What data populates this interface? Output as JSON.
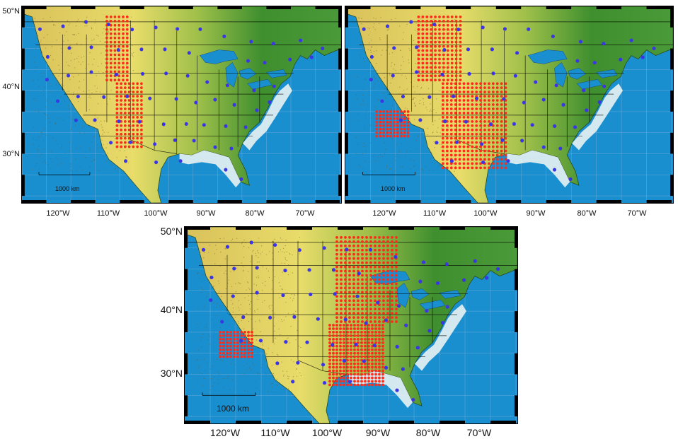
{
  "colors": {
    "ocean": "#1a8fd0",
    "lowland_green": "#3f8f2f",
    "plains_yellow": "#e8dc6a",
    "desert_tan": "#d9c15a",
    "coastal_white": "#e8f3f2",
    "station_blue": "#3b35e6",
    "grid_red": "#ff2a1a",
    "border_black": "#000000",
    "graticule": "#8fb4d6"
  },
  "axes": {
    "lat_labels": [
      "50°N",
      "40°N",
      "30°N"
    ],
    "lon_labels": [
      "120°W",
      "110°W",
      "100°W",
      "90°W",
      "80°W",
      "70°W"
    ]
  },
  "panels": [
    {
      "id": "top-left",
      "scale_label": "1000 km"
    },
    {
      "id": "top-right",
      "scale_label": "1000 km"
    },
    {
      "id": "bottom",
      "scale_label": "1000 km"
    }
  ]
}
